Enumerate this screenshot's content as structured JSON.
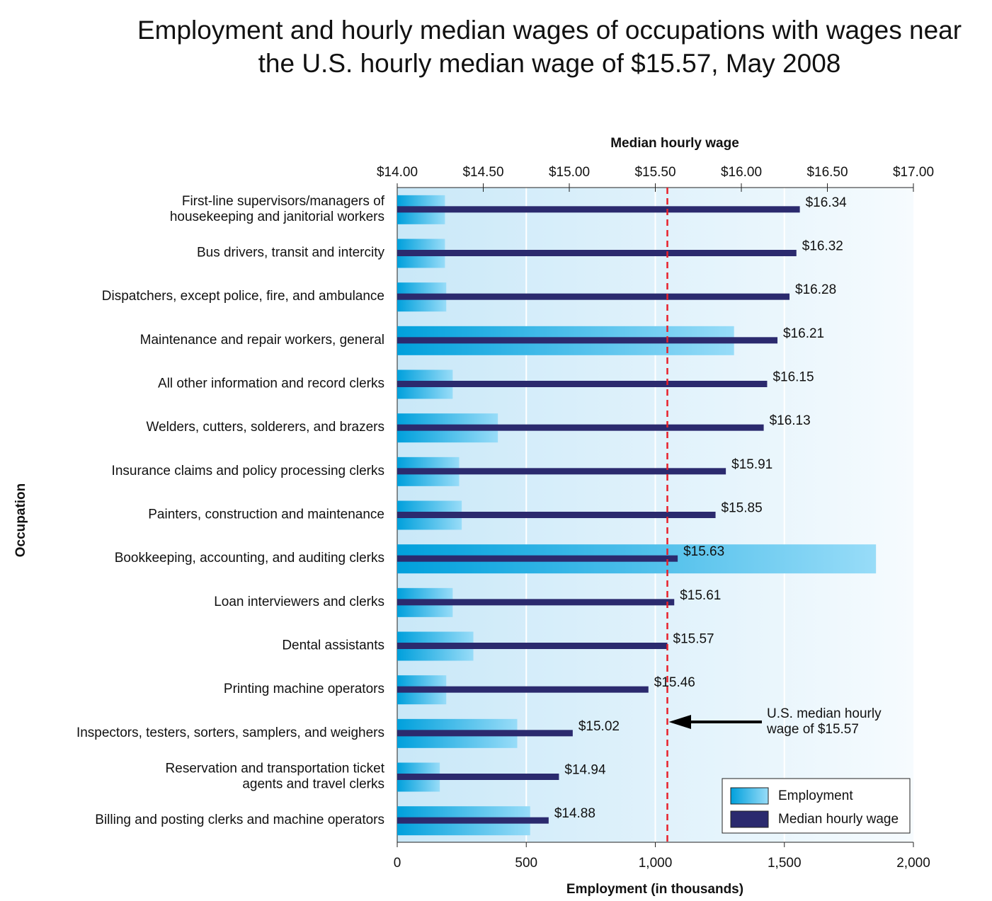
{
  "chart_data": {
    "type": "bar",
    "orientation": "horizontal",
    "title": "Employment and hourly median wages of occupations with wages near\nthe U.S. hourly median wage of $15.57, May 2008",
    "x_label": "Employment (in thousands)",
    "x2_label": "Median hourly wage",
    "y_label": "Occupation",
    "categories": [
      "First-line supervisors/managers of\nhousekeeping and janitorial workers",
      "Bus drivers, transit and intercity",
      "Dispatchers, except police, fire, and ambulance",
      "Maintenance and repair workers, general",
      "All other information and record clerks",
      "Welders, cutters, solderers, and brazers",
      "Insurance claims and policy processing clerks",
      "Painters, construction and maintenance",
      "Bookkeeping, accounting, and auditing clerks",
      "Loan interviewers and clerks",
      "Dental assistants",
      "Printing machine operators",
      "Inspectors, testers, sorters, samplers, and weighers",
      "Reservation and transportation ticket\nagents and travel clerks",
      "Billing and posting clerks and machine operators"
    ],
    "series": [
      {
        "name": "Employment",
        "color": [
          "#00a0dc",
          "#98dcf8"
        ],
        "values": [
          185,
          185,
          190,
          1305,
          215,
          390,
          240,
          250,
          1855,
          215,
          295,
          190,
          465,
          165,
          515
        ]
      },
      {
        "name": "Median hourly wage",
        "color": "#2b2a6e",
        "axis": "x2",
        "values": [
          16.34,
          16.32,
          16.28,
          16.21,
          16.15,
          16.13,
          15.91,
          15.85,
          15.63,
          15.61,
          15.57,
          15.46,
          15.02,
          14.94,
          14.88
        ],
        "value_labels": [
          "$16.34",
          "$16.32",
          "$16.28",
          "$16.21",
          "$16.15",
          "$16.13",
          "$15.91",
          "$15.85",
          "$15.63",
          "$15.61",
          "$15.57",
          "$15.46",
          "$15.02",
          "$14.94",
          "$14.88"
        ]
      }
    ],
    "xlim": [
      0,
      2000
    ],
    "xticks": [
      0,
      500,
      {
        "value": 1000,
        "label": "1,000"
      },
      {
        "value": 1500,
        "label": "1,500"
      },
      {
        "value": 2000,
        "label": "2,000"
      }
    ],
    "x2lim": [
      14,
      17
    ],
    "x2ticks": [
      {
        "value": 14,
        "label": "$14.00"
      },
      {
        "value": 14.5,
        "label": "$14.50"
      },
      {
        "value": 15,
        "label": "$15.00"
      },
      {
        "value": 15.5,
        "label": "$15.50"
      },
      {
        "value": 16,
        "label": "$16.00"
      },
      {
        "value": 16.5,
        "label": "$16.50"
      },
      {
        "value": 17,
        "label": "$17.00"
      }
    ],
    "grid": true,
    "reference_line": {
      "value": 15.57,
      "axis": "x2",
      "color": "#e8202a"
    },
    "annotation": "U.S. median hourly\nwage of $15.57",
    "legend": "lower right"
  }
}
